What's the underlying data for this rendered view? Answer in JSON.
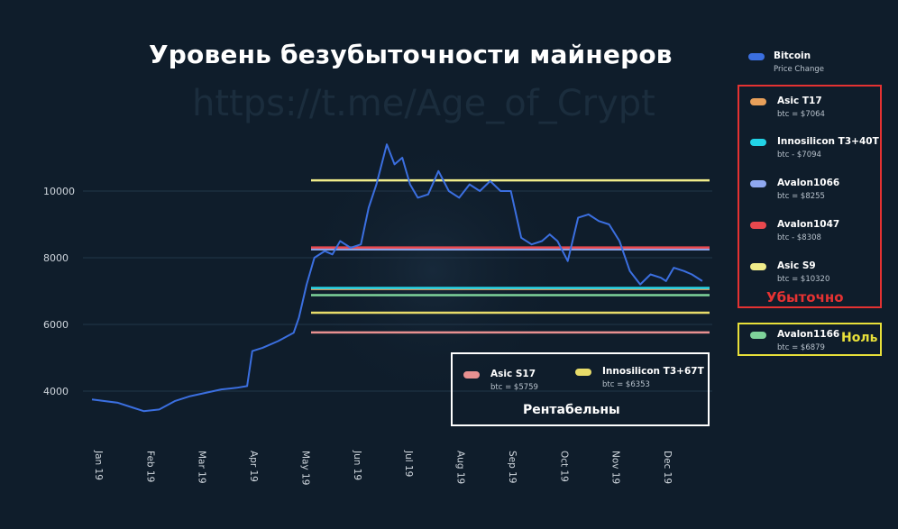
{
  "title": "Уровень безубыточности майнеров",
  "watermark": "https://t.me/Age_of_Crypt",
  "groups": {
    "loss_label": "Убыточно",
    "zero_label": "Ноль",
    "profit_label": "Рентабельны"
  },
  "colors": {
    "background": "#0f1d2b",
    "bitcoin": "#3b6fe0",
    "loss_box": "#e53232",
    "zero_box": "#e8e03a",
    "profit_box": "#ffffff"
  },
  "legend": {
    "bitcoin": {
      "name": "Bitcoin",
      "sub": "Price Change",
      "color": "#3b6fe0"
    },
    "asic_t17": {
      "name": "Asic T17",
      "sub": "btc = $7064",
      "color": "#e8a05a"
    },
    "innosilicon_t3_40t": {
      "name": "Innosilicon T3+40T",
      "sub": "btc - $7094",
      "color": "#22d3e6"
    },
    "avalon1066": {
      "name": "Avalon1066",
      "sub": "btc = $8255",
      "color": "#8fa8f0"
    },
    "avalon1047": {
      "name": "Avalon1047",
      "sub": "btc - $8308",
      "color": "#e8484e"
    },
    "asic_s9": {
      "name": "Asic S9",
      "sub": "btc = $10320",
      "color": "#f0ec8a"
    },
    "avalon1166": {
      "name": "Avalon1166",
      "sub": "btc = $6879",
      "color": "#7ed39a"
    },
    "asic_s17": {
      "name": "Asic S17",
      "sub": "btc = $5759",
      "color": "#e89090"
    },
    "innosilicon_t3_67t": {
      "name": "Innosilicon T3+67T",
      "sub": "btc = $6353",
      "color": "#e8dc6a"
    }
  },
  "chart_data": {
    "type": "line",
    "title": "Уровень безубыточности майнеров",
    "xlabel": "",
    "ylabel": "",
    "ylim": [
      3000,
      12000
    ],
    "yticks": [
      4000,
      6000,
      8000,
      10000
    ],
    "ytick_labels": [
      "4000",
      "6000",
      "8000",
      "10000"
    ],
    "xticks": [
      "Jan 19",
      "Feb 19",
      "Mar 19",
      "Apr 19",
      "May 19",
      "Jun 19",
      "Jul 19",
      "Aug 19",
      "Sep 19",
      "Oct 19",
      "Nov 19",
      "Dec 19"
    ],
    "grid": true,
    "x_months": [
      0,
      0.5,
      0.8,
      1.0,
      1.3,
      1.6,
      1.9,
      2.2,
      2.5,
      2.8,
      3.0,
      3.1,
      3.3,
      3.6,
      3.9,
      4.0,
      4.15,
      4.3,
      4.5,
      4.65,
      4.8,
      5.0,
      5.2,
      5.35,
      5.5,
      5.7,
      5.85,
      6.0,
      6.15,
      6.3,
      6.5,
      6.7,
      6.9,
      7.1,
      7.3,
      7.5,
      7.7,
      7.9,
      8.1,
      8.3,
      8.5,
      8.7,
      8.85,
      9.0,
      9.2,
      9.4,
      9.6,
      9.8,
      10.0,
      10.2,
      10.4,
      10.6,
      10.8,
      11.0,
      11.1,
      11.25,
      11.45,
      11.6,
      11.8
    ],
    "btc_price": [
      3750,
      3650,
      3500,
      3400,
      3450,
      3700,
      3850,
      3950,
      4050,
      4100,
      4150,
      5200,
      5300,
      5500,
      5750,
      6200,
      7200,
      8000,
      8200,
      8100,
      8500,
      8300,
      8400,
      9500,
      10200,
      11400,
      10800,
      11000,
      10200,
      9800,
      9900,
      10600,
      10000,
      9800,
      10200,
      10000,
      10300,
      10000,
      10000,
      8600,
      8400,
      8500,
      8700,
      8500,
      7900,
      9200,
      9300,
      9100,
      9000,
      8500,
      7600,
      7200,
      7500,
      7400,
      7300,
      7700,
      7600,
      7500,
      7300
    ],
    "series": [
      {
        "name": "Asic T17",
        "value": 7064,
        "color": "#e8a05a"
      },
      {
        "name": "Innosilicon T3+40T",
        "value": 7094,
        "color": "#22d3e6"
      },
      {
        "name": "Avalon1066",
        "value": 8255,
        "color": "#8fa8f0"
      },
      {
        "name": "Avalon1047",
        "value": 8308,
        "color": "#e8484e"
      },
      {
        "name": "Asic S9",
        "value": 10320,
        "color": "#f0ec8a"
      },
      {
        "name": "Avalon1166",
        "value": 6879,
        "color": "#7ed39a"
      },
      {
        "name": "Asic S17",
        "value": 5759,
        "color": "#e89090"
      },
      {
        "name": "Innosilicon T3+67T",
        "value": 6353,
        "color": "#e8dc6a"
      }
    ],
    "legend_position": "right"
  }
}
